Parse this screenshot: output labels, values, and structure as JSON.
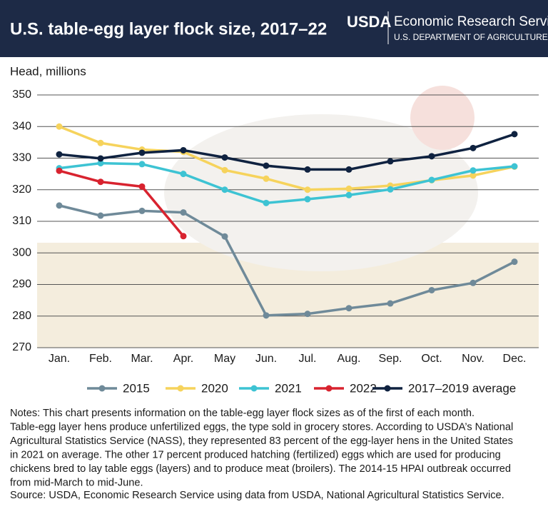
{
  "header": {
    "logo": "USDA",
    "agency": "Economic Research Service",
    "department": "U.S. DEPARTMENT OF AGRICULTURE"
  },
  "chart_data": {
    "type": "line",
    "title": "U.S. table-egg layer flock size, 2017–22",
    "y_label": "Head, millions",
    "categories": [
      "Jan.",
      "Feb.",
      "Mar.",
      "Apr.",
      "May",
      "Jun.",
      "Jul.",
      "Aug.",
      "Sep.",
      "Oct.",
      "Nov.",
      "Dec."
    ],
    "ylim": [
      270,
      350
    ],
    "yticks": [
      270,
      280,
      290,
      300,
      310,
      320,
      330,
      340,
      350
    ],
    "grid": true,
    "series": [
      {
        "name": "2015",
        "color": "#6f8a99",
        "values": [
          315,
          311.8,
          313.3,
          312.8,
          305.2,
          280.2,
          280.7,
          282.5,
          284,
          288.2,
          290.5,
          297.2
        ]
      },
      {
        "name": "2020",
        "color": "#f6d35c",
        "values": [
          340,
          334.8,
          332.7,
          332,
          326.2,
          323.5,
          320,
          320.3,
          321.3,
          323,
          324.5,
          327.3
        ]
      },
      {
        "name": "2021",
        "color": "#3dc3d3",
        "values": [
          326.8,
          328.4,
          328.1,
          325,
          320,
          315.8,
          317,
          318.3,
          320.1,
          323.1,
          326.1,
          327.4
        ]
      },
      {
        "name": "2022",
        "color": "#d8232f",
        "values": [
          326,
          322.5,
          321,
          305.3,
          null,
          null,
          null,
          null,
          null,
          null,
          null,
          null
        ]
      },
      {
        "name": "2017–2019 average",
        "color": "#0f2240",
        "values": [
          331.2,
          329.9,
          331.7,
          332.5,
          330.2,
          327.6,
          326.4,
          326.4,
          329,
          330.6,
          333.2,
          337.6
        ]
      }
    ],
    "notes": [
      "Notes: This chart presents information on the table-egg layer flock sizes as of the first of each month.",
      "Table-egg layer hens produce unfertilized eggs, the type sold in grocery stores. According to USDA’s National",
      "Agricultural Statistics Service (NASS), they represented 83 percent of the egg-layer hens in the United States",
      "in 2021 on average. The other 17 percent produced hatching (fertilized) eggs which are used for producing",
      "chickens bred to lay table eggs (layers) and to produce meat (broilers). The 2014-15 HPAI outbreak occurred",
      "from mid-March to mid-June."
    ],
    "source": "Source: USDA, Economic Research Service using data from USDA, National Agricultural Statistics Service."
  }
}
